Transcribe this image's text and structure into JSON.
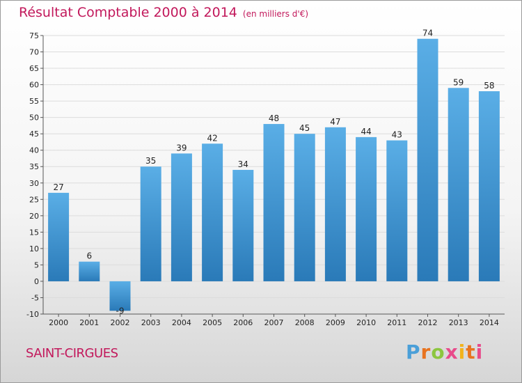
{
  "header": {
    "title": "Résultat Comptable 2000 à 2014",
    "subtitle": "(en milliers d'€)"
  },
  "footer": {
    "commune": "SAINT-CIRGUES",
    "logo_parts": [
      "P",
      "r",
      "o",
      "x",
      "i",
      "t",
      "i"
    ]
  },
  "colors": {
    "bar_top": "#5aaee6",
    "bar_bottom": "#2a7ab8",
    "title": "#c2185b"
  },
  "chart_data": {
    "type": "bar",
    "title": "Résultat Comptable 2000 à 2014",
    "categories": [
      "2000",
      "2001",
      "2002",
      "2003",
      "2004",
      "2005",
      "2006",
      "2007",
      "2008",
      "2009",
      "2010",
      "2011",
      "2012",
      "2013",
      "2014"
    ],
    "values": [
      27,
      6,
      -9,
      35,
      39,
      42,
      34,
      48,
      45,
      47,
      44,
      43,
      74,
      59,
      58
    ],
    "ylim": [
      -10,
      75
    ],
    "yticks": [
      -10,
      -5,
      0,
      5,
      10,
      15,
      20,
      25,
      30,
      35,
      40,
      45,
      50,
      55,
      60,
      65,
      70,
      75
    ],
    "grid": true,
    "xlabel": "",
    "ylabel": ""
  }
}
